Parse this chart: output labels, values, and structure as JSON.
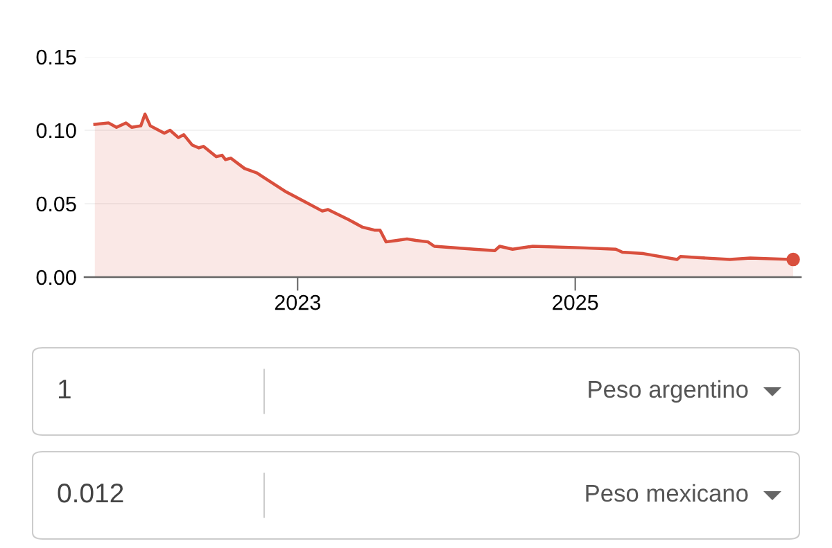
{
  "chart_data": {
    "type": "area",
    "series": [
      {
        "color": "#d94f3d",
        "x": [
          "2021-07-16",
          "2021-08-21",
          "2021-09-11",
          "2021-10-06",
          "2021-10-21",
          "2021-11-14",
          "2021-11-25",
          "2021-12-09",
          "2022-01-15",
          "2022-01-30",
          "2022-02-21",
          "2022-03-07",
          "2022-03-29",
          "2022-04-16",
          "2022-04-28",
          "2022-06-01",
          "2022-06-16",
          "2022-06-25",
          "2022-07-09",
          "2022-08-14",
          "2022-09-15",
          "2022-12-02",
          "2023-01-15",
          "2023-03-07",
          "2023-03-22",
          "2023-05-16",
          "2023-06-21",
          "2023-07-22",
          "2023-08-06",
          "2023-08-22",
          "2023-09-20",
          "2023-10-16",
          "2023-11-08",
          "2023-12-10",
          "2023-12-27",
          "2024-04-10",
          "2024-06-03",
          "2024-06-16",
          "2024-07-20",
          "2024-09-11",
          "2025-01-15",
          "2025-04-18",
          "2025-05-05",
          "2025-06-30",
          "2025-09-26",
          "2025-10-05",
          "2026-02-12",
          "2026-04-07",
          "2026-07-29"
        ],
        "values": [
          0.104,
          0.105,
          0.102,
          0.105,
          0.102,
          0.103,
          0.111,
          0.103,
          0.098,
          0.1,
          0.095,
          0.097,
          0.09,
          0.088,
          0.089,
          0.082,
          0.083,
          0.08,
          0.081,
          0.074,
          0.071,
          0.058,
          0.052,
          0.045,
          0.046,
          0.039,
          0.034,
          0.032,
          0.032,
          0.024,
          0.025,
          0.026,
          0.025,
          0.024,
          0.021,
          0.019,
          0.018,
          0.021,
          0.019,
          0.021,
          0.02,
          0.019,
          0.017,
          0.016,
          0.012,
          0.014,
          0.012,
          0.013,
          0.012
        ]
      }
    ],
    "xlim": [
      "2021-06-19",
      "2026-08-18"
    ],
    "xticks": [
      {
        "value": "2023-01-01",
        "label": "2023"
      },
      {
        "value": "2025-01-01",
        "label": "2025"
      }
    ],
    "ylim": [
      0,
      0.15
    ],
    "yticks": [
      {
        "value": 0,
        "label": "0.00"
      },
      {
        "value": 0.05,
        "label": "0.05"
      },
      {
        "value": 0.1,
        "label": "0.10"
      },
      {
        "value": 0.15,
        "label": "0.15"
      }
    ],
    "grid": "y",
    "annotations": [
      "1",
      "Peso argentino",
      "0.012",
      "Peso mexicano"
    ]
  }
}
